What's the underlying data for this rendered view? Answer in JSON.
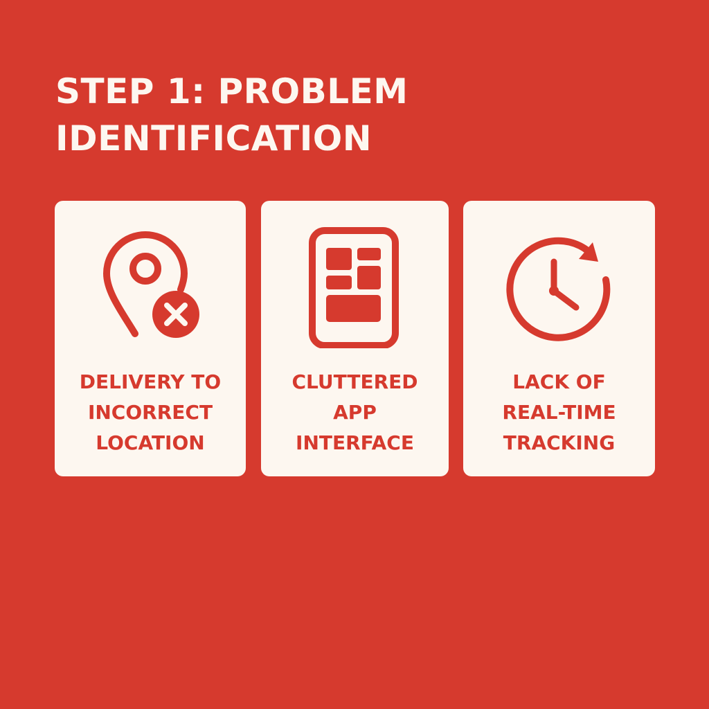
{
  "colors": {
    "background": "#d63a2e",
    "card": "#fdf7f0",
    "accent": "#d63a2e",
    "title_text": "#fdf7f0"
  },
  "title": {
    "line1": "STEP 1: PROBLEM",
    "line2": "IDENTIFICATION"
  },
  "cards": [
    {
      "icon": "location-pin-x-icon",
      "label_lines": [
        "DELIVERY TO",
        "INCORRECT",
        "LOCATION"
      ]
    },
    {
      "icon": "cluttered-app-phone-icon",
      "label_lines": [
        "CLUTTERED",
        "APP",
        "INTERFACE"
      ]
    },
    {
      "icon": "clock-refresh-icon",
      "label_lines": [
        "LACK OF",
        "REAL-TIME",
        "TRACKING"
      ]
    }
  ]
}
